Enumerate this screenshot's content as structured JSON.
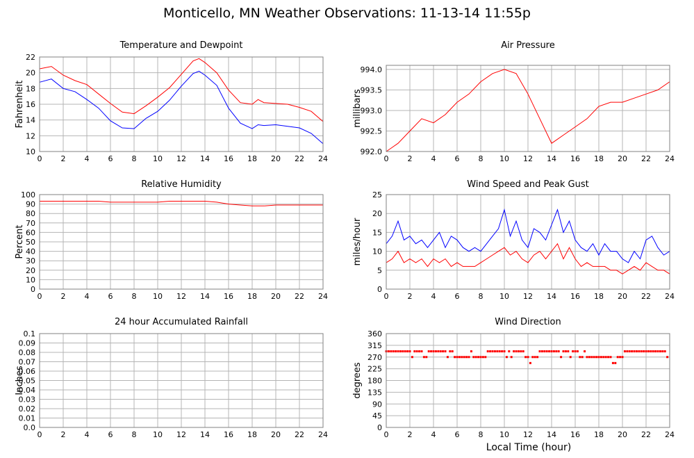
{
  "page": {
    "title": "Monticello, MN Weather Observations: 11-13-14 11:55p",
    "xlabel": "Local Time (hour)"
  },
  "colors": {
    "red": "#ff0000",
    "blue": "#0000ff",
    "grid": "#b4b4b4",
    "frame": "#808080"
  },
  "chart_data": [
    {
      "type": "line",
      "title": "Temperature and Dewpoint",
      "ylabel": "Fahrenheit",
      "xlim": [
        0,
        24
      ],
      "ylim": [
        10,
        22
      ],
      "x_ticks": [
        0,
        2,
        4,
        6,
        8,
        10,
        12,
        14,
        16,
        18,
        20,
        22,
        24
      ],
      "y_ticks": [
        "10",
        "12",
        "14",
        "16",
        "18",
        "20",
        "22"
      ],
      "grid": true,
      "x": [
        0,
        1,
        2,
        3,
        4,
        5,
        6,
        7,
        8,
        9,
        10,
        11,
        12,
        13,
        13.5,
        14,
        15,
        16,
        17,
        18,
        18.5,
        19,
        20,
        21,
        22,
        23,
        24
      ],
      "series": [
        {
          "color": "red",
          "values": [
            20.5,
            20.8,
            19.7,
            19.0,
            18.5,
            17.3,
            16.1,
            15.0,
            14.8,
            15.8,
            16.9,
            18.1,
            19.8,
            21.5,
            21.8,
            21.3,
            20.0,
            17.8,
            16.2,
            16.0,
            16.6,
            16.2,
            16.1,
            16.0,
            15.6,
            15.1,
            13.8
          ]
        },
        {
          "color": "blue",
          "values": [
            18.8,
            19.2,
            18.0,
            17.6,
            16.6,
            15.5,
            13.9,
            13.0,
            12.9,
            14.2,
            15.1,
            16.5,
            18.3,
            19.9,
            20.2,
            19.7,
            18.4,
            15.5,
            13.6,
            12.9,
            13.4,
            13.3,
            13.4,
            13.2,
            13.0,
            12.3,
            11.0
          ]
        }
      ]
    },
    {
      "type": "line",
      "title": "Air Pressure",
      "ylabel": "millibars",
      "xlim": [
        0,
        24
      ],
      "ylim": [
        992.0,
        994.1
      ],
      "x_ticks": [
        0,
        2,
        4,
        6,
        8,
        10,
        12,
        14,
        16,
        18,
        20,
        22,
        24
      ],
      "y_ticks": [
        "992.0",
        "992.5",
        "993.0",
        "993.5",
        "994.0"
      ],
      "grid": true,
      "x": [
        0,
        0.5,
        1,
        2,
        3,
        4,
        5,
        6,
        7,
        8,
        9,
        10,
        11,
        12,
        13,
        14,
        14.5,
        15,
        16,
        17,
        18,
        19,
        20,
        21,
        22,
        23,
        24
      ],
      "series": [
        {
          "color": "red",
          "values": [
            992.0,
            992.1,
            992.2,
            992.5,
            992.8,
            992.7,
            992.9,
            993.2,
            993.4,
            993.7,
            993.9,
            994.0,
            993.9,
            993.4,
            992.8,
            992.2,
            992.3,
            992.4,
            992.6,
            992.8,
            993.1,
            993.2,
            993.2,
            993.3,
            993.4,
            993.5,
            993.7
          ]
        }
      ]
    },
    {
      "type": "line",
      "title": "Relative Humidity",
      "ylabel": "Percent",
      "xlim": [
        0,
        24
      ],
      "ylim": [
        0,
        100
      ],
      "x_ticks": [
        0,
        2,
        4,
        6,
        8,
        10,
        12,
        14,
        16,
        18,
        20,
        22,
        24
      ],
      "y_ticks": [
        "0",
        "10",
        "20",
        "30",
        "40",
        "50",
        "60",
        "70",
        "80",
        "90",
        "100"
      ],
      "grid": true,
      "x": [
        0,
        1,
        2,
        3,
        4,
        5,
        6,
        7,
        8,
        9,
        10,
        11,
        12,
        13,
        14,
        15,
        16,
        17,
        18,
        19,
        20,
        21,
        22,
        23,
        24
      ],
      "series": [
        {
          "color": "red",
          "values": [
            93,
            93,
            93,
            93,
            93,
            93,
            92,
            92,
            92,
            92,
            92,
            93,
            93,
            93,
            93,
            92,
            90,
            89,
            88,
            88,
            89,
            89,
            89,
            89,
            89
          ]
        }
      ]
    },
    {
      "type": "line",
      "title": "Wind Speed and Peak Gust",
      "ylabel": "miles/hour",
      "xlim": [
        0,
        24
      ],
      "ylim": [
        0,
        25
      ],
      "x_ticks": [
        0,
        2,
        4,
        6,
        8,
        10,
        12,
        14,
        16,
        18,
        20,
        22,
        24
      ],
      "y_ticks": [
        "0",
        "5",
        "10",
        "15",
        "20",
        "25"
      ],
      "grid": true,
      "x": [
        0,
        0.5,
        1,
        1.5,
        2,
        2.5,
        3,
        3.5,
        4,
        4.5,
        5,
        5.5,
        6,
        6.5,
        7,
        7.5,
        8,
        8.5,
        9,
        9.5,
        10,
        10.5,
        11,
        11.5,
        12,
        12.5,
        13,
        13.5,
        14,
        14.5,
        15,
        15.5,
        16,
        16.5,
        17,
        17.5,
        18,
        18.5,
        19,
        19.5,
        20,
        20.5,
        21,
        21.5,
        22,
        22.5,
        23,
        23.5,
        24
      ],
      "series": [
        {
          "color": "blue",
          "values": [
            12,
            14,
            18,
            13,
            14,
            12,
            13,
            11,
            13,
            15,
            11,
            14,
            13,
            11,
            10,
            11,
            10,
            12,
            14,
            16,
            21,
            14,
            18,
            13,
            11,
            16,
            15,
            13,
            17,
            21,
            15,
            18,
            13,
            11,
            10,
            12,
            9,
            12,
            10,
            10,
            8,
            7,
            10,
            8,
            13,
            14,
            11,
            9,
            10
          ]
        },
        {
          "color": "red",
          "values": [
            7,
            8,
            10,
            7,
            8,
            7,
            8,
            6,
            8,
            7,
            8,
            6,
            7,
            6,
            6,
            6,
            7,
            8,
            9,
            10,
            11,
            9,
            10,
            8,
            7,
            9,
            10,
            8,
            10,
            12,
            8,
            11,
            8,
            6,
            7,
            6,
            6,
            6,
            5,
            5,
            4,
            5,
            6,
            5,
            7,
            6,
            5,
            5,
            4
          ]
        }
      ]
    },
    {
      "type": "line",
      "title": "24 hour Accumulated Rainfall",
      "ylabel": "Inches",
      "xlim": [
        0,
        24
      ],
      "ylim": [
        0,
        0.1
      ],
      "x_ticks": [
        0,
        2,
        4,
        6,
        8,
        10,
        12,
        14,
        16,
        18,
        20,
        22,
        24
      ],
      "y_ticks": [
        "0.0",
        "0.01",
        "0.02",
        "0.03",
        "0.04",
        "0.05",
        "0.06",
        "0.07",
        "0.08",
        "0.09",
        "0.1"
      ],
      "grid": true,
      "x": [
        0,
        24
      ],
      "series": [
        {
          "color": "red",
          "values": [
            0,
            0
          ]
        }
      ]
    },
    {
      "type": "scatter",
      "title": "Wind Direction",
      "ylabel": "degrees",
      "xlim": [
        0,
        24
      ],
      "ylim": [
        0,
        360
      ],
      "x_ticks": [
        0,
        2,
        4,
        6,
        8,
        10,
        12,
        14,
        16,
        18,
        20,
        22,
        24
      ],
      "y_ticks": [
        "0",
        "45",
        "90",
        "135",
        "180",
        "225",
        "270",
        "315",
        "360"
      ],
      "grid": true,
      "x": [
        0,
        0.2,
        0.4,
        0.6,
        0.8,
        1,
        1.2,
        1.4,
        1.6,
        1.8,
        2,
        2.2,
        2.4,
        2.6,
        2.8,
        3,
        3.2,
        3.4,
        3.6,
        3.8,
        4,
        4.2,
        4.4,
        4.6,
        4.8,
        5,
        5.2,
        5.4,
        5.6,
        5.8,
        6,
        6.2,
        6.4,
        6.6,
        6.8,
        7,
        7.2,
        7.4,
        7.6,
        7.8,
        8,
        8.2,
        8.4,
        8.6,
        8.8,
        9,
        9.2,
        9.4,
        9.6,
        9.8,
        10,
        10.2,
        10.4,
        10.6,
        10.8,
        11,
        11.2,
        11.4,
        11.6,
        11.8,
        12,
        12.2,
        12.4,
        12.6,
        12.8,
        13,
        13.2,
        13.4,
        13.6,
        13.8,
        14,
        14.2,
        14.4,
        14.6,
        14.8,
        15,
        15.2,
        15.4,
        15.6,
        15.8,
        16,
        16.2,
        16.4,
        16.6,
        16.8,
        17,
        17.2,
        17.4,
        17.6,
        17.8,
        18,
        18.2,
        18.4,
        18.6,
        18.8,
        19,
        19.2,
        19.4,
        19.6,
        19.8,
        20,
        20.2,
        20.4,
        20.6,
        20.8,
        21,
        21.2,
        21.4,
        21.6,
        21.8,
        22,
        22.2,
        22.4,
        22.6,
        22.8,
        23,
        23.2,
        23.4,
        23.6,
        23.8
      ],
      "series": [
        {
          "color": "red",
          "values": [
            292,
            292,
            292,
            292,
            292,
            292,
            292,
            292,
            292,
            292,
            292,
            270,
            292,
            292,
            292,
            292,
            270,
            270,
            292,
            292,
            292,
            292,
            292,
            292,
            292,
            292,
            270,
            292,
            292,
            270,
            270,
            270,
            270,
            270,
            270,
            270,
            292,
            270,
            270,
            270,
            270,
            270,
            270,
            292,
            292,
            292,
            292,
            292,
            292,
            292,
            292,
            270,
            292,
            270,
            292,
            292,
            292,
            292,
            292,
            270,
            270,
            247,
            270,
            270,
            270,
            292,
            292,
            292,
            292,
            292,
            292,
            292,
            292,
            292,
            270,
            292,
            292,
            292,
            270,
            292,
            292,
            292,
            270,
            270,
            292,
            270,
            270,
            270,
            270,
            270,
            270,
            270,
            270,
            270,
            270,
            270,
            247,
            247,
            270,
            270,
            270,
            292,
            292,
            292,
            292,
            292,
            292,
            292,
            292,
            292,
            292,
            292,
            292,
            292,
            292,
            292,
            292,
            292,
            292,
            270
          ]
        }
      ]
    }
  ]
}
